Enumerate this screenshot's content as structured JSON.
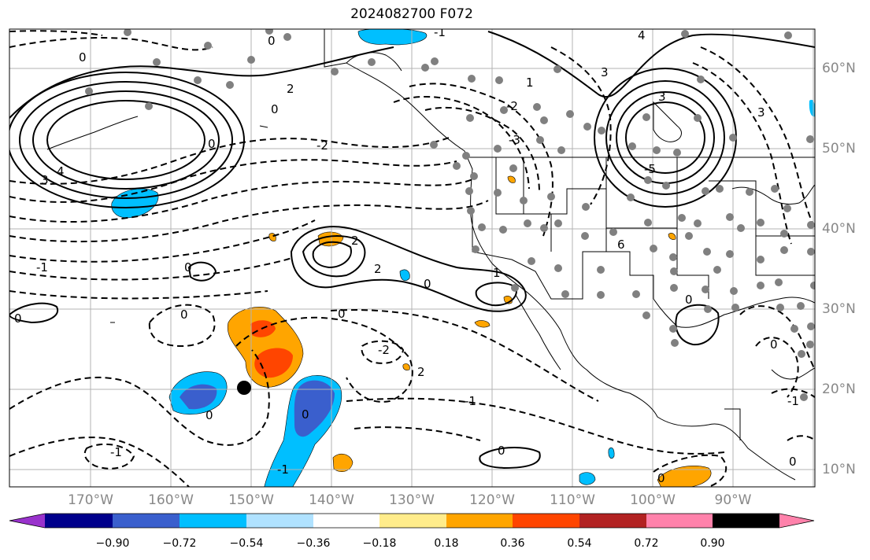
{
  "title": "2024082700 F072",
  "longitude_labels": [
    "170°W",
    "160°W",
    "150°W",
    "140°W",
    "130°W",
    "120°W",
    "110°W",
    "100°W",
    "90°W"
  ],
  "latitude_labels": [
    "60°N",
    "50°N",
    "40°N",
    "30°N",
    "20°N",
    "10°N"
  ],
  "colorbar": {
    "tick_labels": [
      "−0.90",
      "−0.72",
      "−0.54",
      "−0.36",
      "−0.18",
      "0.18",
      "0.36",
      "0.54",
      "0.72",
      "0.90"
    ],
    "colors": [
      "#9932cc",
      "#00008b",
      "#3a5fcd",
      "#00bfff",
      "#b0e2ff",
      "#ffffff",
      "#ffec8b",
      "#ffa500",
      "#ff4500",
      "#b22222",
      "#ff82ab"
    ]
  },
  "contour_labels": [
    {
      "text": "0",
      "name": "contour-label-0-a"
    },
    {
      "text": "0",
      "name": "contour-label-0-b"
    },
    {
      "text": "2",
      "name": "contour-label-2-a"
    },
    {
      "text": "0",
      "name": "contour-label-0-c"
    },
    {
      "text": "3",
      "name": "contour-label-3-a"
    },
    {
      "text": "4",
      "name": "contour-label-4-a"
    },
    {
      "text": "0",
      "name": "contour-label-0-d"
    },
    {
      "text": "-2",
      "name": "contour-label-neg2-a"
    },
    {
      "text": "2",
      "name": "contour-label-2-b"
    },
    {
      "text": "2",
      "name": "contour-label-2-c"
    },
    {
      "text": "0",
      "name": "contour-label-0-e"
    },
    {
      "text": "1",
      "name": "contour-label-1-a"
    },
    {
      "text": "0",
      "name": "contour-label-0-f"
    },
    {
      "text": "0",
      "name": "contour-label-0-g"
    },
    {
      "text": "-2",
      "name": "contour-label-neg2-b"
    },
    {
      "text": "2",
      "name": "contour-label-2-d"
    },
    {
      "text": "-1",
      "name": "contour-label-neg1-a"
    },
    {
      "text": "0",
      "name": "contour-label-0-h"
    },
    {
      "text": "0",
      "name": "contour-label-0-i"
    },
    {
      "text": "-1",
      "name": "contour-label-neg1-b"
    },
    {
      "text": "-1",
      "name": "contour-label-neg1-c"
    },
    {
      "text": "0",
      "name": "contour-label-0-j"
    },
    {
      "text": "0",
      "name": "contour-label-0-k"
    },
    {
      "text": "-2",
      "name": "contour-label-neg2-c"
    },
    {
      "text": "-3",
      "name": "contour-label-neg3-a"
    },
    {
      "text": "3",
      "name": "contour-label-3-b"
    },
    {
      "text": "3",
      "name": "contour-label-3-c"
    },
    {
      "text": "-5",
      "name": "contour-label-neg5-a"
    },
    {
      "text": "6",
      "name": "contour-label-6-a"
    },
    {
      "text": "0",
      "name": "contour-label-0-l"
    },
    {
      "text": "1",
      "name": "contour-label-1-b"
    },
    {
      "text": "-1",
      "name": "contour-label-neg1-d"
    },
    {
      "text": "0",
      "name": "contour-label-0-m"
    },
    {
      "text": "3",
      "name": "contour-label-3-d"
    },
    {
      "text": "-1",
      "name": "contour-label-neg1-e"
    },
    {
      "text": "0",
      "name": "contour-label-0-n"
    },
    {
      "text": "0",
      "name": "contour-label-0-o"
    },
    {
      "text": "4",
      "name": "contour-label-4-b"
    },
    {
      "text": "0",
      "name": "contour-label-0-p"
    },
    {
      "text": "-1",
      "name": "contour-label-neg1-f"
    }
  ]
}
